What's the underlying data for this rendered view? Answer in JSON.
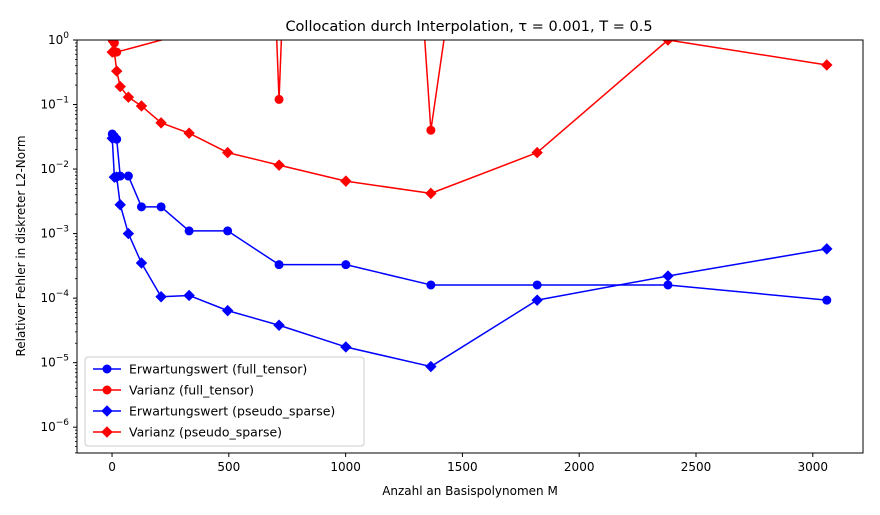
{
  "chart_data": {
    "type": "line",
    "title": "Collocation durch Interpolation, τ = 0.001, T = 0.5",
    "xlabel": "Anzahl an Basispolynomen M",
    "ylabel": "Relativer Fehler in diskreter L2-Norm",
    "yscale": "log",
    "xlim": [
      -150,
      3215
    ],
    "ylim_exp": [
      -6.4,
      0
    ],
    "xticks": [
      0,
      500,
      1000,
      1500,
      2000,
      2500,
      3000
    ],
    "yticks_exp": [
      -6,
      -5,
      -4,
      -3,
      -2,
      -1,
      0
    ],
    "grid": false,
    "legend_position": "lower-left",
    "series": [
      {
        "name": "Erwartungswert (full_tensor)",
        "color": "#0000ff",
        "marker": "circle",
        "x": [
          1,
          10,
          20,
          35,
          70,
          126,
          210,
          330,
          495,
          715,
          1001,
          1365,
          1820,
          2380,
          3060
        ],
        "y": [
          0.035,
          0.032,
          0.029,
          0.0078,
          0.0078,
          0.0026,
          0.0026,
          0.0011,
          0.0011,
          0.00033,
          0.00033,
          0.00016,
          0.00016,
          0.00016,
          9.3e-05
        ]
      },
      {
        "name": "Varianz (full_tensor)",
        "color": "#ff0000",
        "marker": "circle",
        "x": [
          1,
          10,
          20,
          700,
          715,
          730,
          1330,
          1365,
          1440
        ],
        "y": [
          1.0,
          0.9,
          0.65,
          3.0,
          0.12,
          3.0,
          3.0,
          0.04,
          3.0
        ]
      },
      {
        "name": "Erwartungswert (pseudo_sparse)",
        "color": "#0000ff",
        "marker": "diamond",
        "x": [
          1,
          10,
          20,
          35,
          70,
          126,
          210,
          330,
          495,
          715,
          1001,
          1365,
          1820,
          2380,
          3060
        ],
        "y": [
          0.03,
          0.0075,
          0.0075,
          0.0028,
          0.001,
          0.00035,
          0.000105,
          0.00011,
          6.4e-05,
          3.8e-05,
          1.75e-05,
          8.7e-06,
          9.3e-05,
          0.00022,
          0.00058
        ]
      },
      {
        "name": "Varianz (pseudo_sparse)",
        "color": "#ff0000",
        "marker": "diamond",
        "x": [
          1,
          10,
          20,
          35,
          70,
          126,
          210,
          330,
          495,
          715,
          1001,
          1365,
          1820,
          2380,
          3060
        ],
        "y": [
          0.65,
          0.65,
          0.33,
          0.19,
          0.13,
          0.095,
          0.052,
          0.036,
          0.018,
          0.0115,
          0.0065,
          0.0042,
          0.018,
          1.0,
          0.41
        ]
      }
    ]
  }
}
